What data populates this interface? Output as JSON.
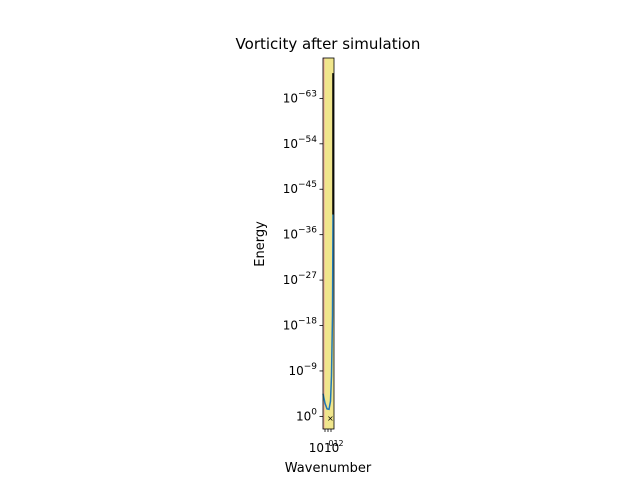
{
  "chart_data": {
    "type": "line",
    "title": "Vorticity after simulation",
    "xlabel": "Wavenumber",
    "ylabel": "Energy",
    "yscale": "log",
    "ylim_exponent": [
      -2.5,
      71
    ],
    "yticks": [
      {
        "base": "10",
        "exp": "0",
        "value_exp": 0
      },
      {
        "base": "10",
        "exp": "−9",
        "value_exp": 9
      },
      {
        "base": "10",
        "exp": "−18",
        "value_exp": 18
      },
      {
        "base": "10",
        "exp": "−27",
        "value_exp": 27
      },
      {
        "base": "10",
        "exp": "−36",
        "value_exp": 36
      },
      {
        "base": "10",
        "exp": "−45",
        "value_exp": 45
      },
      {
        "base": "10",
        "exp": "−54",
        "value_exp": 54
      },
      {
        "base": "10",
        "exp": "−63",
        "value_exp": 63
      }
    ],
    "xticks_text": "1010",
    "xticks_small_text": "012",
    "colors": {
      "band": "#f0e68c",
      "band_edge": "#e8a0a0",
      "line": "#1f77b4",
      "tail": "#000000"
    }
  }
}
